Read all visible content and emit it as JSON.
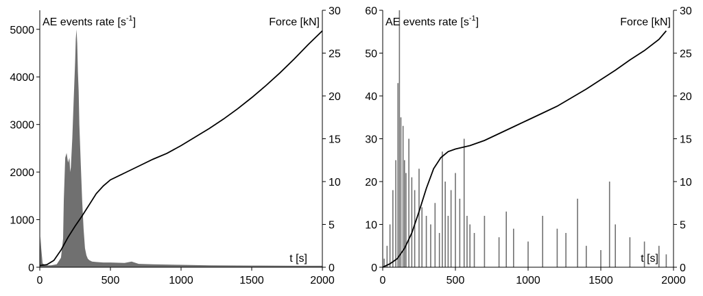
{
  "chart_data": [
    {
      "type": "area",
      "panel": "left",
      "xlabel": "t [s]",
      "ylabel_left": "AE events rate [s",
      "ylabel_left_sup": "-1",
      "ylabel_left_close": "]",
      "ylabel_right": "Force [kN]",
      "xlim": [
        0,
        2000
      ],
      "ylim_left": [
        0,
        5400
      ],
      "ylim_right": [
        0,
        30
      ],
      "xticks": [
        "0",
        "500",
        "1000",
        "1500",
        "2000"
      ],
      "yticks_left": [
        "0",
        "1000",
        "2000",
        "3000",
        "4000",
        "5000"
      ],
      "yticks_right": [
        "0",
        "5",
        "10",
        "15",
        "20",
        "25",
        "30"
      ],
      "series": [
        {
          "name": "AE events rate",
          "axis": "left",
          "color": "#707070",
          "x": [
            0,
            5,
            10,
            20,
            40,
            80,
            120,
            150,
            165,
            170,
            180,
            190,
            200,
            210,
            215,
            220,
            230,
            240,
            250,
            255,
            260,
            265,
            270,
            275,
            280,
            290,
            300,
            310,
            320,
            330,
            340,
            350,
            370,
            400,
            450,
            500,
            600,
            650,
            700,
            800,
            1000,
            1200,
            1500,
            1800,
            2000
          ],
          "values": [
            50,
            650,
            400,
            80,
            40,
            40,
            60,
            200,
            600,
            1400,
            2300,
            2400,
            2200,
            2300,
            2000,
            2100,
            2700,
            3500,
            4300,
            4800,
            5000,
            4700,
            4100,
            3700,
            3000,
            2200,
            1400,
            800,
            400,
            250,
            180,
            150,
            120,
            110,
            100,
            100,
            90,
            120,
            70,
            60,
            50,
            40,
            35,
            30,
            30
          ]
        },
        {
          "name": "Force",
          "axis": "right",
          "color": "#000000",
          "x": [
            0,
            50,
            100,
            150,
            200,
            250,
            300,
            350,
            400,
            450,
            500,
            600,
            700,
            800,
            900,
            1000,
            1100,
            1200,
            1300,
            1400,
            1500,
            1600,
            1700,
            1800,
            1900,
            2000
          ],
          "values": [
            0.2,
            0.3,
            0.8,
            2.0,
            3.5,
            4.8,
            6.0,
            7.3,
            8.6,
            9.5,
            10.2,
            11.0,
            11.8,
            12.6,
            13.3,
            14.2,
            15.2,
            16.2,
            17.3,
            18.5,
            19.8,
            21.2,
            22.7,
            24.3,
            26.0,
            27.6
          ]
        }
      ]
    },
    {
      "type": "bar",
      "panel": "right",
      "xlabel": "t [s]",
      "ylabel_left": "AE events rate [s",
      "ylabel_left_sup": "-1",
      "ylabel_left_close": "]",
      "ylabel_right": "Force [kN]",
      "xlim": [
        0,
        2000
      ],
      "ylim_left": [
        0,
        60
      ],
      "ylim_right": [
        0,
        30
      ],
      "xticks": [
        "0",
        "500",
        "1000",
        "1500",
        "2000"
      ],
      "yticks_left": [
        "0",
        "10",
        "20",
        "30",
        "40",
        "50",
        "60"
      ],
      "yticks_right": [
        "0",
        "5",
        "10",
        "15",
        "20",
        "25",
        "30"
      ],
      "series": [
        {
          "name": "AE events rate",
          "axis": "left",
          "color": "#707070",
          "x": [
            10,
            30,
            50,
            70,
            90,
            105,
            115,
            125,
            140,
            150,
            160,
            180,
            200,
            220,
            250,
            270,
            300,
            330,
            360,
            390,
            410,
            430,
            450,
            470,
            500,
            530,
            560,
            580,
            600,
            630,
            700,
            800,
            850,
            900,
            1000,
            1100,
            1200,
            1260,
            1340,
            1400,
            1500,
            1560,
            1600,
            1700,
            1800,
            1900,
            1950
          ],
          "values": [
            2,
            5,
            10,
            18,
            25,
            43,
            60,
            35,
            33,
            25,
            22,
            30,
            21,
            18,
            23,
            14,
            12,
            10,
            15,
            8,
            27,
            20,
            12,
            18,
            22,
            16,
            30,
            12,
            10,
            8,
            12,
            7,
            13,
            9,
            6,
            12,
            9,
            8,
            16,
            5,
            4,
            20,
            10,
            7,
            6,
            5,
            3
          ]
        },
        {
          "name": "Force",
          "axis": "right",
          "color": "#000000",
          "x": [
            0,
            50,
            100,
            150,
            200,
            250,
            300,
            350,
            400,
            450,
            500,
            550,
            600,
            700,
            800,
            900,
            1000,
            1100,
            1200,
            1300,
            1400,
            1500,
            1600,
            1700,
            1800,
            1900,
            1950
          ],
          "values": [
            0.0,
            0.4,
            1.0,
            2.2,
            4.0,
            6.5,
            9.2,
            11.5,
            12.8,
            13.5,
            13.8,
            14.0,
            14.2,
            14.8,
            15.6,
            16.4,
            17.2,
            18.0,
            18.8,
            19.8,
            20.8,
            21.9,
            23.0,
            24.2,
            25.3,
            26.6,
            27.6
          ]
        }
      ]
    }
  ]
}
